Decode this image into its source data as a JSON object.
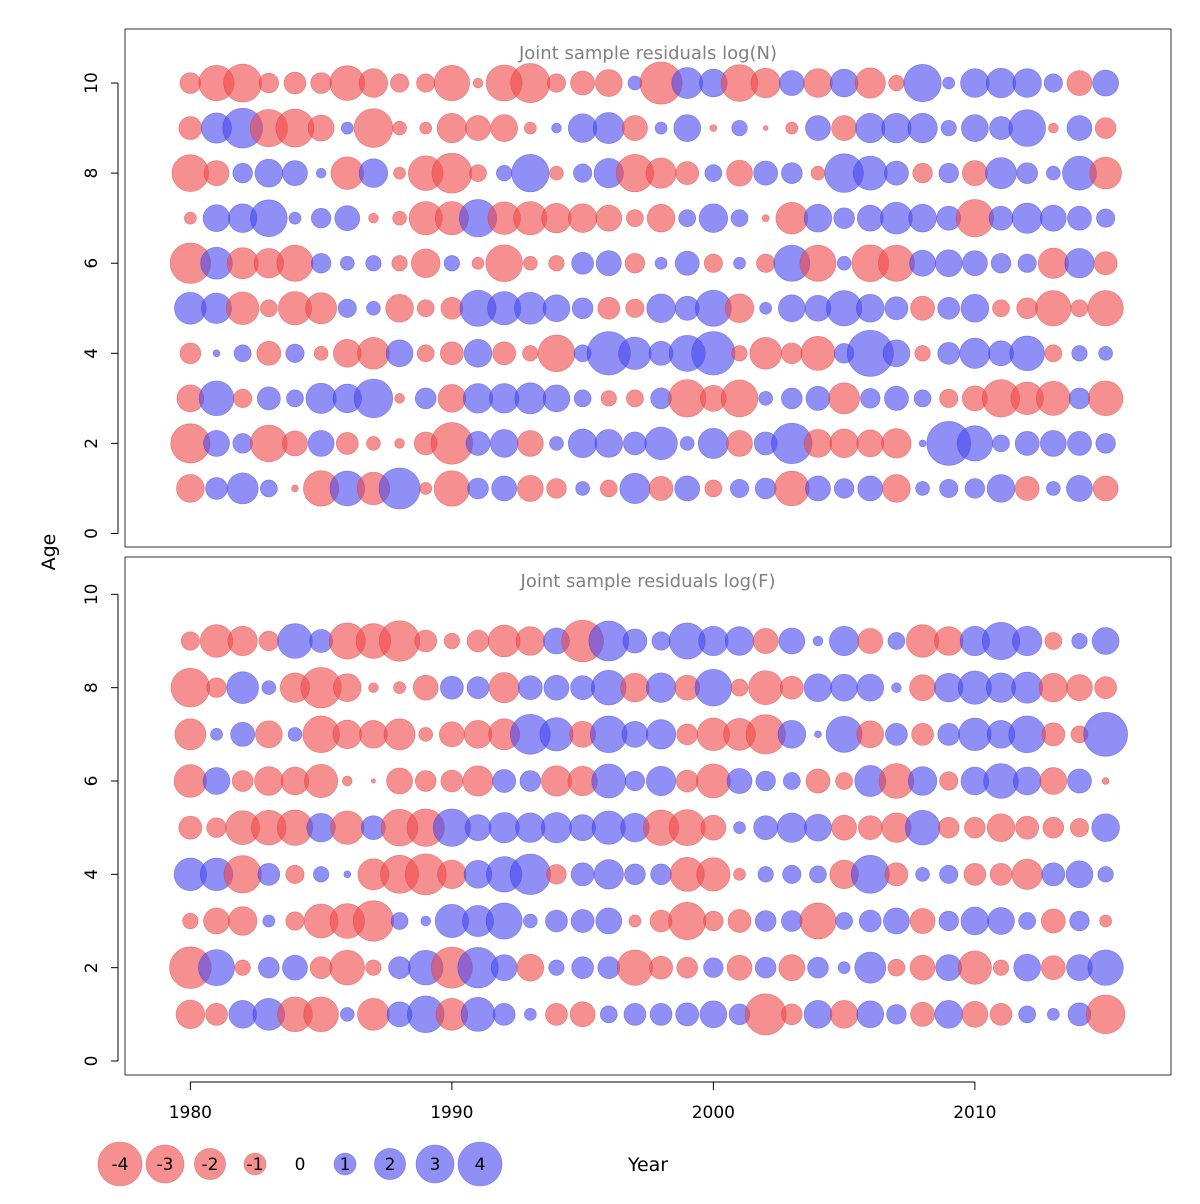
{
  "chart_data": {
    "type": "bubble",
    "description_axes": {
      "x_label": "Year",
      "y_label": "Age",
      "x_ticks": [
        1980,
        1990,
        2000,
        2010
      ],
      "y_ticks": [
        0,
        2,
        4,
        6,
        8,
        10
      ],
      "xlim": [
        1977.5,
        2017.5
      ],
      "years": [
        1980,
        1981,
        1982,
        1983,
        1984,
        1985,
        1986,
        1987,
        1988,
        1989,
        1990,
        1991,
        1992,
        1993,
        1994,
        1995,
        1996,
        1997,
        1998,
        1999,
        2000,
        2001,
        2002,
        2003,
        2004,
        2005,
        2006,
        2007,
        2008,
        2009,
        2010,
        2011,
        2012,
        2013,
        2014,
        2015
      ]
    },
    "colors": {
      "positive": "#4a4af0",
      "negative": "#f04a4a",
      "axis": "#000000",
      "title": "#808080"
    },
    "panels": [
      {
        "title": "Joint sample residuals log(N)",
        "ylim": [
          -0.3,
          11.2
        ],
        "ages": [
          1,
          2,
          3,
          4,
          5,
          6,
          7,
          8,
          9,
          10
        ],
        "residuals": [
          [
            -1.6,
            1.0,
            2.0,
            0.6,
            -0.1,
            -2.6,
            2.5,
            -2.2,
            3.5,
            -0.3,
            -2.6,
            0.9,
            1.3,
            -1.4,
            -0.8,
            0.4,
            -0.6,
            1.9,
            -1.2,
            1.3,
            -0.6,
            0.7,
            0.9,
            -2.5,
            1.3,
            0.8,
            1.3,
            -1.6,
            0.4,
            0.7,
            0.8,
            1.6,
            -1.2,
            0.4,
            1.4,
            -1.3
          ],
          [
            -3.2,
            1.4,
            0.8,
            -2.8,
            -1.3,
            1.4,
            -1.0,
            -0.4,
            -0.2,
            -1.1,
            -3.6,
            1.2,
            1.6,
            -1.4,
            0.4,
            1.7,
            1.6,
            1.1,
            2.2,
            0.4,
            1.9,
            -1.4,
            1.1,
            3.4,
            -1.6,
            -1.7,
            -1.5,
            -1.8,
            0.1,
            4.0,
            2.6,
            0.6,
            1.2,
            1.4,
            1.2,
            0.8
          ],
          [
            -1.5,
            2.5,
            -0.7,
            1.1,
            0.6,
            1.9,
            1.7,
            3.1,
            -0.2,
            0.9,
            -1.6,
            1.8,
            1.8,
            2.0,
            1.5,
            0.6,
            -0.5,
            -0.6,
            0.9,
            -2.9,
            -1.4,
            -2.8,
            0.4,
            0.9,
            1.2,
            -2.0,
            0.8,
            1.2,
            0.6,
            -0.7,
            -1.3,
            -2.9,
            -2.2,
            -2.4,
            0.9,
            -2.5
          ],
          [
            -0.9,
            0.1,
            0.6,
            -1.2,
            0.7,
            -0.4,
            -1.6,
            -2.1,
            1.5,
            -0.6,
            -1.1,
            1.6,
            -1.1,
            -0.5,
            -2.8,
            0.6,
            3.9,
            2.2,
            1.2,
            2.7,
            3.9,
            -0.5,
            -2.1,
            -0.9,
            -2.4,
            0.8,
            4.4,
            1.5,
            -0.5,
            1.0,
            1.9,
            1.3,
            2.5,
            -0.6,
            0.5,
            0.4
          ],
          [
            2.1,
            1.9,
            -2.2,
            -0.6,
            -2.3,
            -2.0,
            0.7,
            0.4,
            -1.6,
            -0.6,
            -1.0,
            2.7,
            2.3,
            2.1,
            1.5,
            0.9,
            -1.0,
            -0.7,
            1.7,
            1.2,
            2.7,
            -1.7,
            0.3,
            1.5,
            1.4,
            2.6,
            1.6,
            1.1,
            -1.2,
            1.0,
            1.6,
            -0.6,
            -0.9,
            -2.6,
            -0.6,
            -2.6
          ],
          [
            -3.4,
            2.1,
            -2.0,
            -1.8,
            -2.7,
            0.8,
            0.4,
            0.5,
            -0.5,
            -1.7,
            0.5,
            -0.3,
            -2.8,
            -0.4,
            -0.5,
            1.0,
            1.3,
            -0.8,
            0.3,
            1.2,
            -0.7,
            0.3,
            -0.7,
            2.7,
            -2.7,
            0.4,
            -2.8,
            -2.7,
            1.4,
            1.5,
            1.3,
            0.8,
            0.7,
            -1.9,
            1.8,
            -1.1
          ],
          [
            -0.3,
            1.5,
            1.7,
            2.8,
            0.3,
            0.8,
            1.3,
            -0.2,
            -0.4,
            -2.3,
            -2.3,
            2.9,
            -2.2,
            -2.3,
            -1.8,
            -1.7,
            -1.4,
            -0.6,
            -1.6,
            0.6,
            1.7,
            0.6,
            -0.1,
            -2.1,
            1.6,
            0.9,
            1.4,
            2.1,
            1.6,
            1.2,
            -2.9,
            1.2,
            1.9,
            1.4,
            1.2,
            0.7
          ],
          [
            -2.8,
            -1.3,
            0.8,
            1.6,
            1.3,
            0.2,
            -2.2,
            1.7,
            -0.3,
            -2.5,
            -3.3,
            -0.6,
            0.5,
            2.9,
            -0.4,
            0.7,
            1.8,
            -2.9,
            -1.9,
            -1.1,
            0.6,
            -1.4,
            1.2,
            0.9,
            -0.4,
            3.1,
            2.4,
            1.2,
            -0.8,
            0.8,
            -1.3,
            2.0,
            0.9,
            0.4,
            2.4,
            -2.1
          ],
          [
            -1.1,
            1.9,
            3.3,
            -2.9,
            -3.0,
            -1.4,
            0.3,
            -3.1,
            -0.4,
            -0.3,
            -1.8,
            -1.3,
            -1.5,
            -0.3,
            0.2,
            1.7,
            2.0,
            -1.3,
            0.3,
            1.5,
            -0.1,
            0.5,
            -0.05,
            -0.3,
            1.3,
            -1.3,
            1.8,
            1.8,
            1.8,
            0.5,
            1.5,
            1.1,
            2.8,
            -0.2,
            1.3,
            -0.9
          ],
          [
            -0.9,
            -2.6,
            -3.0,
            -0.8,
            -1.0,
            -0.9,
            -2.5,
            -1.7,
            -0.7,
            -0.7,
            -2.6,
            -0.2,
            -2.7,
            -3.2,
            -0.7,
            -1.2,
            -1.5,
            0.4,
            -3.7,
            2.0,
            1.6,
            -2.8,
            -1.8,
            1.3,
            -1.7,
            1.6,
            -1.9,
            -0.5,
            2.9,
            0.3,
            1.7,
            1.8,
            1.7,
            0.7,
            -1.3,
            1.4
          ]
        ]
      },
      {
        "title": "Joint sample residuals log(F)",
        "ylim": [
          -0.3,
          10.8
        ],
        "ages": [
          1,
          2,
          3,
          4,
          5,
          6,
          7,
          8,
          9
        ],
        "residuals": [
          [
            -1.7,
            -1.0,
            1.6,
            2.1,
            -2.5,
            -2.5,
            0.4,
            -2.1,
            1.3,
            2.8,
            -2.1,
            2.4,
            1.0,
            0.3,
            -1.0,
            -1.3,
            0.6,
            1.0,
            1.0,
            1.1,
            1.5,
            0.9,
            -3.5,
            -0.9,
            1.6,
            -1.6,
            1.5,
            0.8,
            -1.2,
            1.6,
            -1.4,
            -1.0,
            0.6,
            0.3,
            1.1,
            -3.1
          ],
          [
            -3.6,
            2.7,
            -0.5,
            0.9,
            1.3,
            -1.0,
            -2.5,
            -0.5,
            1.0,
            2.5,
            -3.5,
            3.4,
            1.4,
            -1.5,
            0.5,
            1.0,
            1.0,
            -2.6,
            -1.1,
            -0.9,
            0.8,
            -1.3,
            0.9,
            -1.4,
            0.9,
            0.3,
            2.0,
            -0.6,
            -1.3,
            1.4,
            -2.3,
            -0.5,
            1.5,
            -1.2,
            1.4,
            2.6
          ],
          [
            -0.5,
            -1.4,
            -1.7,
            0.3,
            -0.7,
            -2.4,
            -2.5,
            -3.4,
            0.6,
            0.2,
            2.3,
            2.0,
            2.7,
            0.4,
            1.0,
            1.1,
            1.4,
            -0.3,
            -1.0,
            -2.9,
            -0.8,
            -1.1,
            0.9,
            0.9,
            -2.7,
            0.6,
            1.0,
            1.4,
            -1.3,
            0.8,
            1.6,
            1.5,
            0.6,
            -1.2,
            0.8,
            -0.3
          ],
          [
            2.2,
            2.2,
            -2.9,
            1.0,
            -0.7,
            0.5,
            0.1,
            -2.0,
            -3.0,
            -3.5,
            -1.7,
            1.6,
            2.6,
            3.4,
            -0.8,
            1.1,
            1.8,
            0.9,
            0.9,
            -2.4,
            -2.3,
            -0.3,
            0.5,
            0.7,
            0.6,
            -1.7,
            3.0,
            -1.1,
            0.4,
            0.7,
            -1.0,
            -1.0,
            -1.9,
            1.1,
            1.5,
            0.5
          ],
          [
            -1.1,
            -0.8,
            -2.4,
            -2.5,
            -2.6,
            1.7,
            -2.3,
            1.2,
            -2.8,
            -2.9,
            2.9,
            1.4,
            1.9,
            1.8,
            1.9,
            1.4,
            2.3,
            1.7,
            -2.6,
            -2.7,
            -1.3,
            0.3,
            1.2,
            1.8,
            1.5,
            -1.3,
            -1.2,
            -1.8,
            2.5,
            -0.9,
            -0.9,
            -1.6,
            -1.1,
            -0.9,
            -0.7,
            1.6
          ],
          [
            -2.2,
            1.5,
            -0.9,
            -1.7,
            -1.6,
            -2.3,
            -0.2,
            -0.04,
            -1.4,
            -0.9,
            -1.0,
            -1.9,
            1.1,
            0.9,
            -1.9,
            -1.8,
            2.4,
            0.8,
            1.8,
            -1.0,
            -2.4,
            1.3,
            0.8,
            0.6,
            -1.2,
            -0.6,
            2.0,
            -2.5,
            1.7,
            -0.7,
            1.6,
            2.5,
            1.6,
            -1.5,
            1.2,
            -0.1
          ],
          [
            -2.0,
            0.3,
            1.2,
            -1.5,
            0.4,
            -2.8,
            -1.7,
            -1.6,
            -2.0,
            -0.4,
            -1.3,
            -1.6,
            -2.0,
            3.3,
            2.3,
            -1.4,
            2.8,
            1.4,
            1.8,
            -0.9,
            -2.2,
            -2.1,
            -3.2,
            1.6,
            0.1,
            2.7,
            -1.5,
            1.0,
            -1.0,
            1.0,
            2.2,
            1.6,
            2.8,
            -1.1,
            -0.6,
            4.0
          ],
          [
            -3.1,
            -0.8,
            2.1,
            0.4,
            -1.8,
            -3.4,
            -1.6,
            -0.2,
            -0.3,
            -1.3,
            1.1,
            1.0,
            -1.9,
            1.2,
            1.3,
            1.2,
            2.5,
            -1.7,
            1.8,
            -1.3,
            2.8,
            -0.6,
            -2.4,
            -1.1,
            1.6,
            1.5,
            1.5,
            0.2,
            -1.4,
            1.7,
            2.3,
            1.8,
            2.0,
            -1.7,
            -1.4,
            -1.0
          ],
          [
            -0.7,
            -2.2,
            -1.8,
            -0.8,
            2.5,
            1.1,
            -2.7,
            -2.5,
            -3.4,
            -1.0,
            -0.5,
            -1.0,
            -2.1,
            -1.7,
            1.4,
            -3.6,
            3.3,
            1.2,
            0.7,
            2.7,
            1.8,
            1.7,
            -1.3,
            1.4,
            0.2,
            1.8,
            -1.3,
            0.6,
            -2.2,
            -1.7,
            1.8,
            2.9,
            1.8,
            -0.6,
            0.5,
            1.5
          ]
        ]
      }
    ],
    "legend": {
      "values": [
        -4,
        -3,
        -2,
        -1,
        0,
        1,
        2,
        3,
        4
      ],
      "labels": [
        "-4",
        "-3",
        "-2",
        "-1",
        "0",
        "1",
        "2",
        "3",
        "4"
      ]
    }
  }
}
